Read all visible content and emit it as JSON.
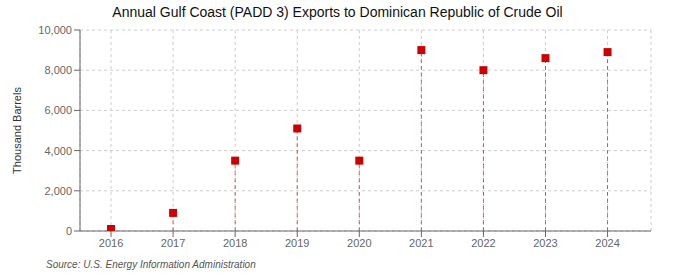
{
  "chart_data": {
    "type": "scatter",
    "title": "Annual Gulf Coast (PADD 3) Exports to Dominican Republic of Crude Oil",
    "ylabel": "Thousand Barrels",
    "annotation": "Source: U.S. Energy Information Administration",
    "x": [
      2016,
      2017,
      2018,
      2019,
      2020,
      2021,
      2022,
      2023,
      2024
    ],
    "values": [
      100,
      900,
      3500,
      5100,
      3500,
      9000,
      8000,
      8600,
      8900
    ],
    "color": "#cc0000",
    "marker": "square",
    "line_style": "dashed",
    "xlim": [
      2015.5,
      2024.7
    ],
    "xticks": [
      2016,
      2017,
      2018,
      2019,
      2020,
      2021,
      2022,
      2023,
      2024
    ],
    "ylim": [
      0,
      10000
    ],
    "yticks": [
      0,
      {
        "value": 2000,
        "label": "2,000"
      },
      {
        "value": 4000,
        "label": "4,000"
      },
      {
        "value": 6000,
        "label": "6,000"
      },
      {
        "value": 8000,
        "label": "8,000"
      },
      {
        "value": 10000,
        "label": "10,000"
      }
    ],
    "grid": true
  }
}
